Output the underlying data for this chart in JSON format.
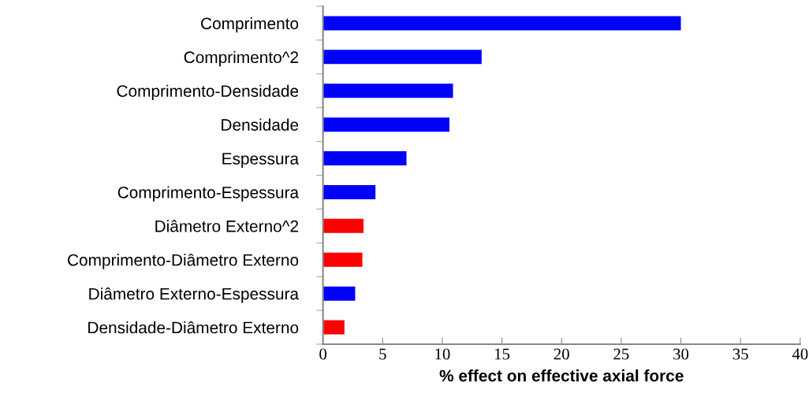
{
  "chart_data": {
    "type": "bar",
    "orientation": "horizontal",
    "xlabel": "% effect on effective axial force",
    "categories": [
      "Comprimento",
      "Comprimento^2",
      "Comprimento-Densidade",
      "Densidade",
      "Espessura",
      "Comprimento-Espessura",
      "Diâmetro Externo^2",
      "Comprimento-Diâmetro Externo",
      "Diâmetro Externo-Espessura",
      "Densidade-Diâmetro Externo"
    ],
    "values": [
      30.0,
      13.3,
      10.9,
      10.6,
      7.0,
      4.4,
      3.4,
      3.3,
      2.7,
      1.8
    ],
    "colors": [
      "#0000ff",
      "#0000ff",
      "#0000ff",
      "#0000ff",
      "#0000ff",
      "#0000ff",
      "#ff0000",
      "#ff0000",
      "#0000ff",
      "#ff0000"
    ],
    "xlim": [
      0,
      40
    ],
    "xticks": [
      0,
      5,
      10,
      15,
      20,
      25,
      30,
      35,
      40
    ],
    "grid": false,
    "legend": false
  }
}
